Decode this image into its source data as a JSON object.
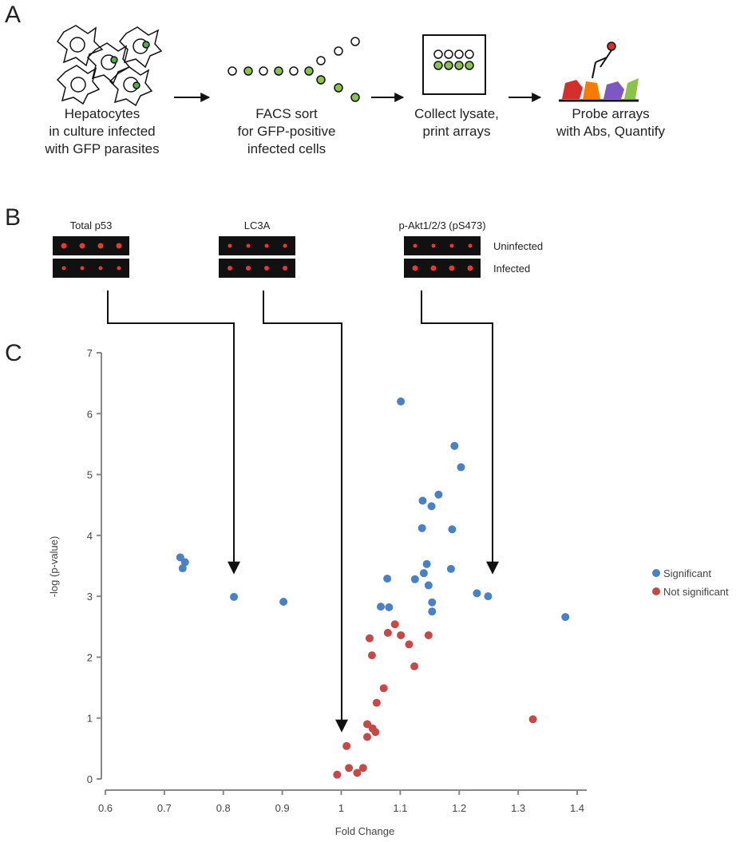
{
  "panels": [
    "A",
    "B",
    "C"
  ],
  "workflow": [
    {
      "lines": [
        "Hepatocytes",
        "in culture infected",
        "with GFP parasites"
      ]
    },
    {
      "lines": [
        "FACS sort",
        "for GFP-positive",
        "infected cells"
      ]
    },
    {
      "lines": [
        "Collect lysate,",
        "print arrays"
      ]
    },
    {
      "lines": [
        "Probe arrays",
        "with Abs, Quantify"
      ]
    }
  ],
  "blots": {
    "targets": [
      "Total p53",
      "LC3A",
      "p-Akt1/2/3 (pS473)"
    ],
    "rows": [
      "Uninfected",
      "Infected"
    ]
  },
  "chart_data": {
    "type": "scatter",
    "xlabel": "Fold Change",
    "ylabel": "-log (p-value)",
    "xlim": [
      0.6,
      1.4
    ],
    "xticks": [
      0.6,
      0.7,
      0.8,
      0.9,
      1,
      1.1,
      1.2,
      1.3,
      1.4
    ],
    "ylim": [
      0,
      7
    ],
    "yticks": [
      0,
      1,
      2,
      3,
      4,
      5,
      6,
      7
    ],
    "series": [
      {
        "name": "Significant",
        "color": "#4a80c4",
        "x": [
          0.727,
          0.735,
          0.731,
          0.818,
          0.902,
          1.101,
          1.192,
          1.203,
          1.165,
          1.138,
          1.153,
          1.137,
          1.188,
          1.145,
          1.14,
          1.186,
          1.078,
          1.125,
          1.148,
          1.154,
          1.154,
          1.067,
          1.081,
          1.23,
          1.249,
          1.38
        ],
        "values": [
          3.64,
          3.56,
          3.46,
          2.99,
          2.91,
          6.2,
          5.47,
          5.12,
          4.67,
          4.57,
          4.48,
          4.12,
          4.1,
          3.53,
          3.38,
          3.45,
          3.29,
          3.28,
          3.18,
          2.9,
          2.75,
          2.83,
          2.82,
          3.05,
          3.0,
          2.66
        ]
      },
      {
        "name": "Not significant",
        "color": "#c44a4a",
        "x": [
          1.048,
          1.091,
          1.079,
          1.101,
          1.115,
          1.148,
          1.052,
          1.124,
          1.072,
          1.06,
          1.325,
          1.044,
          1.053,
          1.058,
          1.044,
          1.009,
          1.013,
          1.037,
          1.027,
          0.993
        ],
        "values": [
          2.31,
          2.54,
          2.4,
          2.36,
          2.21,
          2.36,
          2.03,
          1.85,
          1.49,
          1.25,
          0.98,
          0.9,
          0.83,
          0.77,
          0.69,
          0.54,
          0.18,
          0.18,
          0.1,
          0.07
        ]
      }
    ]
  }
}
